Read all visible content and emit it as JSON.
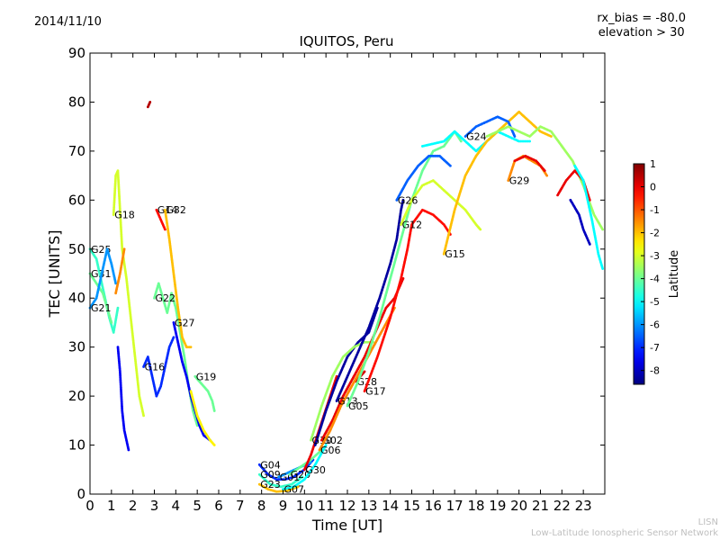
{
  "header": {
    "date": "2014/11/10",
    "title": "IQUITOS, Peru",
    "rx_bias": "rx_bias = -80.0",
    "elevation": "elevation > 30"
  },
  "footer": {
    "org_short": "LISN",
    "org_full": "Low-Latitude Ionospheric Sensor Network"
  },
  "chart_data": {
    "type": "scatter",
    "title": "IQUITOS, Peru",
    "xlabel": "Time [UT]",
    "ylabel": "TEC [UNITS]",
    "xlim": [
      0,
      24
    ],
    "ylim": [
      0,
      90
    ],
    "xticks": [
      0,
      1,
      2,
      3,
      4,
      5,
      6,
      7,
      8,
      9,
      10,
      11,
      12,
      13,
      14,
      15,
      16,
      17,
      18,
      19,
      20,
      21,
      22,
      23
    ],
    "yticks": [
      0,
      10,
      20,
      30,
      40,
      50,
      60,
      70,
      80,
      90
    ],
    "grid": false,
    "colorbar": {
      "label": "Latitude",
      "range": [
        -8.6,
        1
      ],
      "ticks": [
        1,
        0,
        -1,
        -2,
        -3,
        -4,
        -5,
        -6,
        -7,
        -8
      ]
    },
    "series": [
      {
        "name": "G25",
        "points": [
          [
            0,
            50
          ],
          [
            0.3,
            48
          ],
          [
            0.6,
            42
          ],
          [
            0.9,
            36
          ],
          [
            1.1,
            33
          ],
          [
            1.3,
            38
          ]
        ],
        "lat": -4.5
      },
      {
        "name": "G31",
        "points": [
          [
            0,
            45
          ],
          [
            0.3,
            43
          ],
          [
            0.6,
            41
          ],
          [
            0.8,
            38
          ],
          [
            1.0,
            35
          ]
        ],
        "lat": -4
      },
      {
        "name": "G21",
        "points": [
          [
            0,
            38
          ],
          [
            0.3,
            40
          ],
          [
            0.6,
            46
          ],
          [
            0.8,
            50
          ],
          [
            1.0,
            47
          ],
          [
            1.2,
            43
          ]
        ],
        "lat": -6
      },
      {
        "name": "G18",
        "points": [
          [
            1.1,
            57
          ],
          [
            1.2,
            65
          ],
          [
            1.3,
            66
          ],
          [
            1.4,
            58
          ],
          [
            1.5,
            50
          ],
          [
            1.7,
            44
          ],
          [
            1.9,
            36
          ],
          [
            2.1,
            28
          ],
          [
            2.3,
            20
          ],
          [
            2.5,
            16
          ]
        ],
        "lat": -3
      },
      {
        "name": "",
        "points": [
          [
            1.2,
            41
          ],
          [
            1.4,
            45
          ],
          [
            1.6,
            50
          ]
        ],
        "lat": -1.5
      },
      {
        "name": "",
        "points": [
          [
            1.3,
            30
          ],
          [
            1.4,
            25
          ],
          [
            1.5,
            17
          ],
          [
            1.6,
            13
          ],
          [
            1.8,
            9
          ]
        ],
        "lat": -7.5
      },
      {
        "name": "",
        "points": [
          [
            2.7,
            79
          ],
          [
            2.8,
            80
          ]
        ],
        "lat": 0.5
      },
      {
        "name": "G16",
        "points": [
          [
            2.5,
            26
          ],
          [
            2.7,
            28
          ],
          [
            2.9,
            24
          ],
          [
            3.1,
            20
          ],
          [
            3.3,
            22
          ],
          [
            3.5,
            26
          ],
          [
            3.7,
            30
          ],
          [
            3.9,
            32
          ]
        ],
        "lat": -7
      },
      {
        "name": "G22",
        "points": [
          [
            3.0,
            40
          ],
          [
            3.2,
            43
          ],
          [
            3.4,
            40
          ],
          [
            3.6,
            37
          ],
          [
            3.8,
            41
          ],
          [
            4.0,
            38
          ],
          [
            4.2,
            33
          ],
          [
            4.4,
            28
          ],
          [
            4.6,
            22
          ],
          [
            4.8,
            17
          ],
          [
            5.0,
            14
          ]
        ],
        "lat": -4
      },
      {
        "name": "G14",
        "points": [
          [
            3.1,
            58
          ],
          [
            3.3,
            56
          ],
          [
            3.5,
            54
          ]
        ],
        "lat": -0.3
      },
      {
        "name": "G32",
        "points": [
          [
            3.5,
            58
          ],
          [
            3.7,
            52
          ],
          [
            3.9,
            45
          ],
          [
            4.1,
            38
          ],
          [
            4.3,
            32
          ],
          [
            4.5,
            30
          ],
          [
            4.7,
            30
          ]
        ],
        "lat": -2
      },
      {
        "name": "G27",
        "points": [
          [
            3.9,
            35
          ],
          [
            4.1,
            31
          ],
          [
            4.3,
            27
          ],
          [
            4.5,
            24
          ],
          [
            4.7,
            20
          ],
          [
            4.9,
            17
          ],
          [
            5.1,
            14
          ],
          [
            5.3,
            12
          ],
          [
            5.6,
            11
          ]
        ],
        "lat": -7.5
      },
      {
        "name": "G19",
        "points": [
          [
            4.9,
            24
          ],
          [
            5.1,
            23
          ],
          [
            5.3,
            22
          ],
          [
            5.5,
            21
          ],
          [
            5.7,
            19
          ],
          [
            5.8,
            17
          ]
        ],
        "lat": -4
      },
      {
        "name": "",
        "points": [
          [
            4.7,
            21
          ],
          [
            5.0,
            16
          ],
          [
            5.3,
            13
          ],
          [
            5.6,
            11
          ],
          [
            5.8,
            10
          ]
        ],
        "lat": -2.5
      },
      {
        "name": "G04",
        "points": [
          [
            7.9,
            6
          ],
          [
            8.3,
            4
          ],
          [
            8.7,
            3
          ],
          [
            9.1,
            3
          ],
          [
            9.5,
            3.5
          ],
          [
            10.0,
            5
          ],
          [
            10.4,
            7
          ]
        ],
        "lat": -7
      },
      {
        "name": "G09",
        "points": [
          [
            7.9,
            4
          ],
          [
            8.4,
            2
          ],
          [
            8.9,
            1.5
          ],
          [
            9.4,
            2
          ],
          [
            9.9,
            3.5
          ]
        ],
        "lat": -4.5
      },
      {
        "name": "G23",
        "points": [
          [
            7.9,
            2
          ],
          [
            8.3,
            1
          ],
          [
            8.7,
            0.5
          ],
          [
            9.2,
            0.7
          ],
          [
            9.7,
            1.5
          ]
        ],
        "lat": -2
      },
      {
        "name": "G01",
        "points": [
          [
            8.8,
            3.5
          ],
          [
            9.3,
            4.5
          ],
          [
            9.8,
            5.5
          ],
          [
            10.3,
            6.5
          ]
        ],
        "lat": -6
      },
      {
        "name": "G20",
        "points": [
          [
            9.3,
            4
          ],
          [
            9.8,
            5.5
          ],
          [
            10.3,
            7
          ],
          [
            10.8,
            9
          ]
        ],
        "lat": -4
      },
      {
        "name": "G07",
        "points": [
          [
            9.0,
            1
          ],
          [
            9.5,
            1.5
          ],
          [
            10.0,
            3
          ],
          [
            10.5,
            6
          ],
          [
            11.0,
            10
          ]
        ],
        "lat": -5
      },
      {
        "name": "G30",
        "points": [
          [
            10.0,
            5
          ],
          [
            10.3,
            8
          ],
          [
            10.6,
            12
          ],
          [
            10.9,
            16
          ],
          [
            11.2,
            20
          ],
          [
            11.5,
            24
          ]
        ],
        "lat": 0
      },
      {
        "name": "",
        "points": [
          [
            10.5,
            10
          ],
          [
            11.0,
            17
          ],
          [
            11.5,
            23
          ],
          [
            12.0,
            28
          ],
          [
            12.5,
            31
          ],
          [
            13.0,
            33
          ],
          [
            13.4,
            38
          ]
        ],
        "lat": -8.3
      },
      {
        "name": "G10",
        "points": [
          [
            10.3,
            11
          ],
          [
            10.8,
            18
          ],
          [
            11.3,
            24
          ],
          [
            11.8,
            28
          ],
          [
            12.3,
            30
          ],
          [
            12.8,
            31
          ],
          [
            13.2,
            31
          ]
        ],
        "lat": -3.5
      },
      {
        "name": "G28",
        "points": [
          [
            12.4,
            23
          ],
          [
            12.6,
            24
          ],
          [
            12.8,
            25
          ]
        ],
        "lat": 0.2
      },
      {
        "name": "G02",
        "points": [
          [
            10.8,
            11
          ],
          [
            11.3,
            15
          ],
          [
            11.8,
            20
          ],
          [
            12.3,
            24
          ],
          [
            12.8,
            28
          ],
          [
            13.3,
            33
          ],
          [
            13.8,
            38
          ],
          [
            14.2,
            40
          ],
          [
            14.6,
            44
          ]
        ],
        "lat": 0
      },
      {
        "name": "G06",
        "points": [
          [
            10.7,
            9
          ],
          [
            11.2,
            13
          ],
          [
            11.7,
            18
          ],
          [
            12.2,
            22
          ],
          [
            12.7,
            26
          ],
          [
            13.2,
            30
          ],
          [
            13.7,
            34
          ],
          [
            14.2,
            38
          ]
        ],
        "lat": -1.5
      },
      {
        "name": "G13",
        "points": [
          [
            11.5,
            19
          ],
          [
            12.0,
            24
          ],
          [
            12.5,
            29
          ],
          [
            13.0,
            34
          ],
          [
            13.5,
            40
          ],
          [
            14.0,
            47
          ],
          [
            14.3,
            52
          ],
          [
            14.5,
            58
          ],
          [
            14.6,
            60
          ]
        ],
        "lat": -8.3
      },
      {
        "name": "G05",
        "points": [
          [
            12.0,
            18
          ],
          [
            12.5,
            23
          ],
          [
            13.0,
            29
          ],
          [
            13.5,
            36
          ],
          [
            14.0,
            44
          ],
          [
            14.5,
            52
          ],
          [
            15.0,
            60
          ],
          [
            15.5,
            66
          ],
          [
            16.0,
            70
          ],
          [
            16.5,
            71
          ],
          [
            17.0,
            74
          ],
          [
            17.3,
            72
          ]
        ],
        "lat": -4
      },
      {
        "name": "G17",
        "points": [
          [
            12.8,
            21
          ],
          [
            13.4,
            28
          ],
          [
            14.0,
            36
          ],
          [
            14.5,
            44
          ],
          [
            14.8,
            50
          ],
          [
            15.0,
            55
          ],
          [
            15.5,
            58
          ],
          [
            16.0,
            57
          ],
          [
            16.5,
            55
          ],
          [
            16.8,
            53
          ]
        ],
        "lat": -0.3
      },
      {
        "name": "G12",
        "points": [
          [
            14.5,
            55
          ],
          [
            15.0,
            60
          ],
          [
            15.5,
            63
          ],
          [
            16.0,
            64
          ],
          [
            16.5,
            62
          ],
          [
            17.0,
            60
          ],
          [
            17.5,
            58
          ],
          [
            18.0,
            55
          ],
          [
            18.2,
            54
          ]
        ],
        "lat": -3
      },
      {
        "name": "G26",
        "points": [
          [
            14.3,
            60
          ],
          [
            14.8,
            64
          ],
          [
            15.3,
            67
          ],
          [
            15.8,
            69
          ],
          [
            16.3,
            69
          ],
          [
            16.8,
            67
          ]
        ],
        "lat": -6.5
      },
      {
        "name": "",
        "points": [
          [
            15.5,
            71
          ],
          [
            16.0,
            71.5
          ],
          [
            16.5,
            72
          ],
          [
            17.0,
            74
          ],
          [
            17.5,
            72
          ],
          [
            18.0,
            70
          ],
          [
            18.5,
            72
          ],
          [
            19.0,
            74
          ],
          [
            19.5,
            73
          ],
          [
            20.0,
            72
          ],
          [
            20.5,
            72
          ]
        ],
        "lat": -5
      },
      {
        "name": "G15",
        "points": [
          [
            16.5,
            49
          ],
          [
            17.0,
            58
          ],
          [
            17.5,
            65
          ],
          [
            18.0,
            69
          ],
          [
            18.5,
            72
          ],
          [
            19.0,
            74
          ],
          [
            19.5,
            76
          ],
          [
            20.0,
            78
          ],
          [
            20.5,
            76
          ],
          [
            21.0,
            74
          ],
          [
            21.5,
            73
          ]
        ],
        "lat": -2
      },
      {
        "name": "G24",
        "points": [
          [
            17.5,
            73
          ],
          [
            18.0,
            75
          ],
          [
            18.5,
            76
          ],
          [
            19.0,
            77
          ],
          [
            19.5,
            76
          ],
          [
            19.8,
            73
          ]
        ],
        "lat": -6.5
      },
      {
        "name": "",
        "points": [
          [
            18.5,
            73
          ],
          [
            19.0,
            74
          ],
          [
            19.5,
            75
          ],
          [
            20.0,
            74
          ],
          [
            20.5,
            73
          ],
          [
            21.0,
            75
          ],
          [
            21.5,
            74
          ],
          [
            22.0,
            71
          ],
          [
            22.5,
            68
          ],
          [
            23.0,
            63
          ],
          [
            23.5,
            57
          ],
          [
            23.9,
            54
          ]
        ],
        "lat": -3.5
      },
      {
        "name": "G29",
        "points": [
          [
            19.5,
            64
          ],
          [
            19.8,
            68
          ],
          [
            20.2,
            69
          ],
          [
            20.6,
            68
          ],
          [
            21.0,
            67
          ],
          [
            21.3,
            65
          ]
        ],
        "lat": -1.5
      },
      {
        "name": "",
        "points": [
          [
            19.8,
            68
          ],
          [
            20.3,
            69
          ],
          [
            20.8,
            68
          ],
          [
            21.2,
            66
          ]
        ],
        "lat": 0
      },
      {
        "name": "",
        "points": [
          [
            21.8,
            61
          ],
          [
            22.2,
            64
          ],
          [
            22.6,
            66
          ],
          [
            23.0,
            64
          ],
          [
            23.3,
            60
          ]
        ],
        "lat": 0
      },
      {
        "name": "",
        "points": [
          [
            22.4,
            60
          ],
          [
            22.8,
            57
          ],
          [
            23.0,
            54
          ],
          [
            23.3,
            51
          ]
        ],
        "lat": -8
      },
      {
        "name": "",
        "points": [
          [
            22.6,
            67
          ],
          [
            23.0,
            64
          ],
          [
            23.4,
            56
          ],
          [
            23.7,
            49
          ],
          [
            23.9,
            46
          ]
        ],
        "lat": -5
      }
    ]
  }
}
